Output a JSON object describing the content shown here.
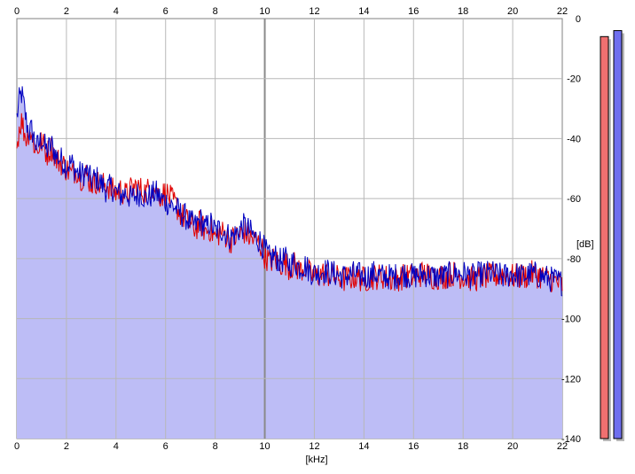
{
  "chart_data": {
    "type": "area",
    "xlabel": "[kHz]",
    "ylabel": "[dB]",
    "xlim": [
      0,
      22
    ],
    "ylim": [
      -140,
      0
    ],
    "x_ticks": [
      "0",
      "2",
      "4",
      "6",
      "8",
      "10",
      "12",
      "14",
      "16",
      "18",
      "20",
      "22"
    ],
    "y_ticks": [
      "0",
      "-20",
      "-40",
      "-60",
      "-80",
      "-100",
      "-120",
      "-140"
    ],
    "grid": true,
    "series": [
      {
        "color": "#e00000",
        "x": [
          0,
          0.1,
          0.2,
          0.3,
          0.4,
          0.5,
          0.6,
          0.7,
          0.8,
          1.0,
          1.2,
          1.4,
          1.6,
          1.8,
          2.0,
          2.2,
          2.4,
          2.6,
          2.8,
          3.0,
          3.2,
          3.4,
          3.6,
          3.8,
          4.0,
          4.2,
          4.4,
          4.6,
          4.8,
          5.0,
          5.2,
          5.4,
          5.6,
          5.8,
          6.0,
          6.2,
          6.4,
          6.6,
          6.8,
          7.0,
          7.2,
          7.4,
          7.6,
          7.8,
          8.0,
          8.2,
          8.4,
          8.6,
          8.8,
          9.0,
          9.2,
          9.4,
          9.6,
          9.8,
          10.0,
          10.2,
          10.4,
          10.6,
          10.8,
          11.0,
          11.2,
          11.4,
          11.6,
          11.8,
          12.0,
          12.4,
          12.8,
          13.2,
          13.6,
          14.0,
          14.4,
          14.8,
          15.2,
          15.6,
          16.0,
          16.4,
          16.8,
          17.2,
          17.6,
          18.0,
          18.4,
          18.8,
          19.2,
          19.6,
          20.0,
          20.4,
          20.8,
          21.2,
          21.6,
          22.0
        ],
        "y": [
          -43,
          -36,
          -34,
          -38,
          -40,
          -37,
          -39,
          -42,
          -44,
          -41,
          -45,
          -43,
          -47,
          -48,
          -50,
          -52,
          -50,
          -53,
          -52,
          -55,
          -54,
          -56,
          -55,
          -57,
          -58,
          -57,
          -59,
          -57,
          -56,
          -57,
          -58,
          -56,
          -57,
          -59,
          -58,
          -60,
          -62,
          -65,
          -67,
          -69,
          -70,
          -68,
          -71,
          -70,
          -73,
          -71,
          -72,
          -74,
          -73,
          -72,
          -71,
          -73,
          -74,
          -75,
          -79,
          -81,
          -80,
          -82,
          -81,
          -83,
          -82,
          -84,
          -83,
          -85,
          -86,
          -85,
          -86,
          -87,
          -86,
          -87,
          -86,
          -86,
          -87,
          -86,
          -86,
          -85,
          -86,
          -86,
          -85,
          -86,
          -87,
          -86,
          -86,
          -85,
          -86,
          -86,
          -85,
          -86,
          -87,
          -89
        ]
      },
      {
        "color": "#0000c0",
        "x": [
          0,
          0.1,
          0.2,
          0.3,
          0.4,
          0.5,
          0.6,
          0.7,
          0.8,
          1.0,
          1.2,
          1.4,
          1.6,
          1.8,
          2.0,
          2.2,
          2.4,
          2.6,
          2.8,
          3.0,
          3.2,
          3.4,
          3.6,
          3.8,
          4.0,
          4.2,
          4.4,
          4.6,
          4.8,
          5.0,
          5.2,
          5.4,
          5.6,
          5.8,
          6.0,
          6.2,
          6.4,
          6.6,
          6.8,
          7.0,
          7.2,
          7.4,
          7.6,
          7.8,
          8.0,
          8.2,
          8.4,
          8.6,
          8.8,
          9.0,
          9.2,
          9.4,
          9.6,
          9.8,
          10.0,
          10.2,
          10.4,
          10.6,
          10.8,
          11.0,
          11.2,
          11.4,
          11.6,
          11.8,
          12.0,
          12.4,
          12.8,
          13.2,
          13.6,
          14.0,
          14.4,
          14.8,
          15.2,
          15.6,
          16.0,
          16.4,
          16.8,
          17.2,
          17.6,
          18.0,
          18.4,
          18.8,
          19.2,
          19.6,
          20.0,
          20.4,
          20.8,
          21.2,
          21.6,
          22.0
        ],
        "y": [
          -33,
          -27,
          -25,
          -30,
          -35,
          -38,
          -37,
          -40,
          -43,
          -40,
          -44,
          -42,
          -46,
          -47,
          -49,
          -48,
          -51,
          -52,
          -51,
          -54,
          -53,
          -55,
          -57,
          -56,
          -58,
          -59,
          -58,
          -60,
          -59,
          -58,
          -60,
          -59,
          -58,
          -60,
          -61,
          -62,
          -63,
          -65,
          -66,
          -68,
          -69,
          -67,
          -70,
          -68,
          -71,
          -70,
          -71,
          -73,
          -72,
          -70,
          -69,
          -71,
          -73,
          -74,
          -77,
          -80,
          -79,
          -81,
          -80,
          -82,
          -81,
          -83,
          -82,
          -84,
          -85,
          -84,
          -85,
          -86,
          -85,
          -86,
          -85,
          -86,
          -86,
          -85,
          -86,
          -85,
          -86,
          -86,
          -85,
          -85,
          -86,
          -85,
          -85,
          -86,
          -85,
          -86,
          -85,
          -86,
          -87,
          -88
        ]
      }
    ],
    "level_meters": [
      {
        "color": "#f07070",
        "level_db": -6
      },
      {
        "color": "#6f6fef",
        "level_db": -4
      }
    ]
  }
}
